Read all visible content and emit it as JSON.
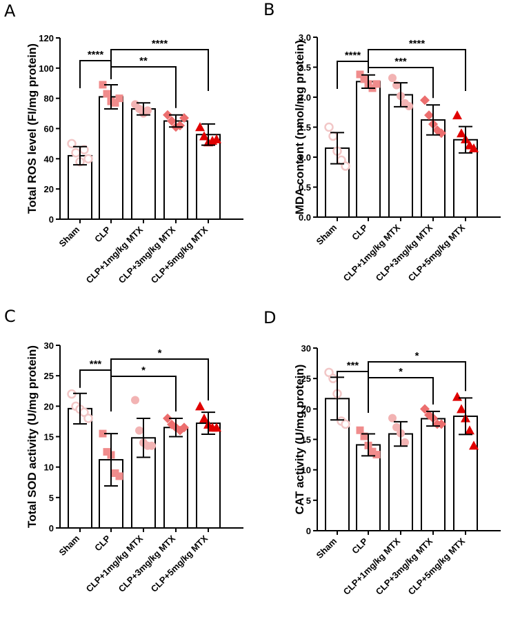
{
  "chart_data": [
    {
      "panel": "A",
      "type": "bar",
      "title": "",
      "xlabel": "",
      "ylabel": "Total ROS level (FI/mg protein)",
      "ylim": [
        0,
        120
      ],
      "yticks": [
        0,
        20,
        40,
        60,
        80,
        100,
        120
      ],
      "categories": [
        "Sham",
        "CLP",
        "CLP+1mg/kg MTX",
        "CLP+3mg/kg MTX",
        "CLP+5mg/kg MTX"
      ],
      "values": [
        42,
        81,
        73,
        65,
        56
      ],
      "errors": [
        6,
        8,
        4,
        4,
        7
      ],
      "points": [
        [
          50,
          44,
          38,
          46,
          40
        ],
        [
          89,
          83,
          78,
          77,
          80
        ],
        [
          76,
          73,
          70,
          72
        ],
        [
          69,
          65,
          61,
          62,
          67
        ],
        [
          61,
          55,
          51,
          52,
          53
        ]
      ],
      "significance": [
        {
          "from": 0,
          "to": 1,
          "label": "****"
        },
        {
          "from": 1,
          "to": 3,
          "label": "**"
        },
        {
          "from": 1,
          "to": 4,
          "label": "****"
        }
      ]
    },
    {
      "panel": "B",
      "type": "bar",
      "title": "",
      "xlabel": "",
      "ylabel": "MDA content (nmol/mg protein)",
      "ylim": [
        0,
        3.0
      ],
      "yticks": [
        "0.0",
        "0.5",
        "1.0",
        "1.5",
        "2.0",
        "2.5",
        "3.0"
      ],
      "categories": [
        "Sham",
        "CLP",
        "CLP+1mg/kg MTX",
        "CLP+3mg/kg MTX",
        "CLP+5mg/kg MTX"
      ],
      "values": [
        1.15,
        2.26,
        2.04,
        1.62,
        1.29
      ],
      "errors": [
        0.26,
        0.11,
        0.2,
        0.25,
        0.22
      ],
      "points": [
        [
          1.5,
          1.35,
          1.1,
          0.95,
          0.85
        ],
        [
          2.38,
          2.3,
          2.22,
          2.15,
          2.22
        ],
        [
          2.32,
          2.2,
          2.02,
          1.9,
          1.85
        ],
        [
          1.95,
          1.7,
          1.55,
          1.45,
          1.4
        ],
        [
          1.7,
          1.4,
          1.3,
          1.2,
          1.15
        ]
      ],
      "significance": [
        {
          "from": 0,
          "to": 1,
          "label": "****"
        },
        {
          "from": 1,
          "to": 3,
          "label": "***"
        },
        {
          "from": 1,
          "to": 4,
          "label": "****"
        }
      ]
    },
    {
      "panel": "C",
      "type": "bar",
      "title": "",
      "xlabel": "",
      "ylabel": "Total SOD activity (U/mg protein)",
      "ylim": [
        0,
        30
      ],
      "yticks": [
        0,
        5,
        10,
        15,
        20,
        25,
        30
      ],
      "categories": [
        "Sham",
        "CLP",
        "CLP+1mg/kg MTX",
        "CLP+3mg/kg MTX",
        "CLP+5mg/kg MTX"
      ],
      "values": [
        19.6,
        11.2,
        14.8,
        16.5,
        17.2
      ],
      "errors": [
        2.5,
        4.3,
        3.2,
        1.5,
        1.8
      ],
      "points": [
        [
          22,
          20,
          19.5,
          19,
          18
        ],
        [
          15.5,
          12.5,
          12,
          9,
          8.5
        ],
        [
          21,
          16,
          14,
          13.5,
          13.5
        ],
        [
          18,
          17,
          16.5,
          16,
          16.5
        ],
        [
          20,
          18,
          17,
          16.5,
          16.5
        ]
      ],
      "significance": [
        {
          "from": 0,
          "to": 1,
          "label": "***"
        },
        {
          "from": 1,
          "to": 3,
          "label": "*"
        },
        {
          "from": 1,
          "to": 4,
          "label": "*"
        }
      ]
    },
    {
      "panel": "D",
      "type": "bar",
      "title": "",
      "xlabel": "",
      "ylabel": "CAT activity (U/mg protein)",
      "ylim": [
        0,
        30
      ],
      "yticks": [
        0,
        5,
        10,
        15,
        20,
        25,
        30
      ],
      "categories": [
        "Sham",
        "CLP",
        "CLP+1mg/kg MTX",
        "CLP+3mg/kg MTX",
        "CLP+5mg/kg MTX"
      ],
      "values": [
        21.7,
        14.1,
        15.9,
        18.4,
        18.8
      ],
      "errors": [
        3.5,
        1.8,
        2.0,
        1.2,
        3.0
      ],
      "points": [
        [
          26,
          25,
          22.5,
          18,
          17.5
        ],
        [
          16.5,
          15.5,
          14,
          13,
          12.5
        ],
        [
          18.5,
          17,
          16,
          14.5
        ],
        [
          20,
          19,
          18.5,
          17.5,
          17.5
        ],
        [
          22,
          20,
          18.5,
          16.5,
          14
        ]
      ],
      "significance": [
        {
          "from": 0,
          "to": 1,
          "label": "***"
        },
        {
          "from": 1,
          "to": 3,
          "label": "*"
        },
        {
          "from": 1,
          "to": 4,
          "label": "*"
        }
      ]
    }
  ],
  "style": {
    "marker_colors": [
      "#f2c7c7",
      "#f08c8c",
      "#f2b3b3",
      "#ec6e6e",
      "#e00000"
    ],
    "marker_shapes": [
      "circle",
      "square",
      "circle",
      "diamond",
      "triangle"
    ],
    "axis_color": "#000000"
  }
}
